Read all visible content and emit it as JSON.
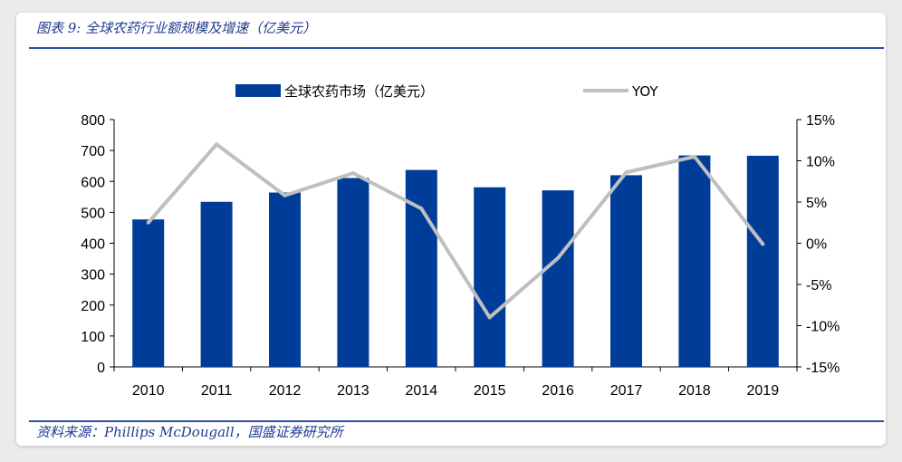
{
  "figure": {
    "title": "图表 9:  全球农药行业额规模及增速（亿美元）",
    "source": "资料来源：Phillips McDougall，国盛证券研究所"
  },
  "chart_data": {
    "type": "bar",
    "categories": [
      "2010",
      "2011",
      "2012",
      "2013",
      "2014",
      "2015",
      "2016",
      "2017",
      "2018",
      "2019"
    ],
    "series": [
      {
        "name": "全球农药市场（亿美元）",
        "type": "bar",
        "axis": "left",
        "color": "#003d99",
        "values": [
          477,
          534,
          564,
          611,
          637,
          581,
          571,
          620,
          684,
          683
        ]
      },
      {
        "name": "YOY",
        "type": "line",
        "axis": "right",
        "color": "#bfbfbf",
        "values": [
          2.5,
          12.0,
          5.8,
          8.5,
          4.2,
          -9.0,
          -1.8,
          8.6,
          10.5,
          -0.1
        ]
      }
    ],
    "y_left": {
      "ylim": [
        0,
        800
      ],
      "ticks": [
        "0",
        "100",
        "200",
        "300",
        "400",
        "500",
        "600",
        "700",
        "800"
      ]
    },
    "y_right": {
      "ylim": [
        -15,
        15
      ],
      "ticks": [
        "-15%",
        "-10%",
        "-5%",
        "0%",
        "5%",
        "10%",
        "15%"
      ]
    },
    "legend": "top-center",
    "grid": false
  }
}
